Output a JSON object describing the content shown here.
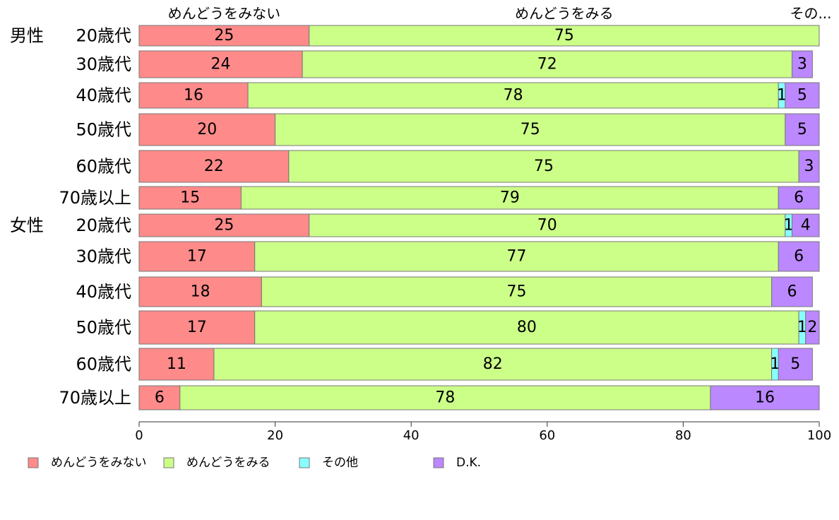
{
  "chart_data": {
    "type": "bar",
    "orientation": "horizontal",
    "stacked": true,
    "xlim": [
      0,
      100
    ],
    "xticks": [
      "0",
      "20",
      "40",
      "60",
      "80",
      "100"
    ],
    "top_labels": [
      "めんどうをみない",
      "めんどうをみる",
      "その..."
    ],
    "group_labels": [
      "男性",
      "女性"
    ],
    "categories": [
      "20歳代",
      "30歳代",
      "40歳代",
      "50歳代",
      "60歳代",
      "70歳以上",
      "20歳代",
      "30歳代",
      "40歳代",
      "50歳代",
      "60歳代",
      "70歳以上"
    ],
    "series": [
      {
        "name": "めんどうをみない",
        "color": "#ff8a8a",
        "values": [
          25,
          24,
          16,
          20,
          22,
          15,
          25,
          17,
          18,
          17,
          11,
          6
        ]
      },
      {
        "name": "めんどうをみる",
        "color": "#ccff88",
        "values": [
          75,
          72,
          78,
          75,
          75,
          79,
          70,
          77,
          75,
          80,
          82,
          78
        ]
      },
      {
        "name": "その他",
        "color": "#88ffff",
        "values": [
          0,
          0,
          1,
          0,
          0,
          0,
          1,
          0,
          0,
          1,
          1,
          0
        ]
      },
      {
        "name": "D.K.",
        "color": "#bb88ff",
        "values": [
          0,
          3,
          5,
          5,
          3,
          6,
          4,
          6,
          6,
          2,
          5,
          16
        ]
      }
    ],
    "legend_position": "bottom-left"
  }
}
